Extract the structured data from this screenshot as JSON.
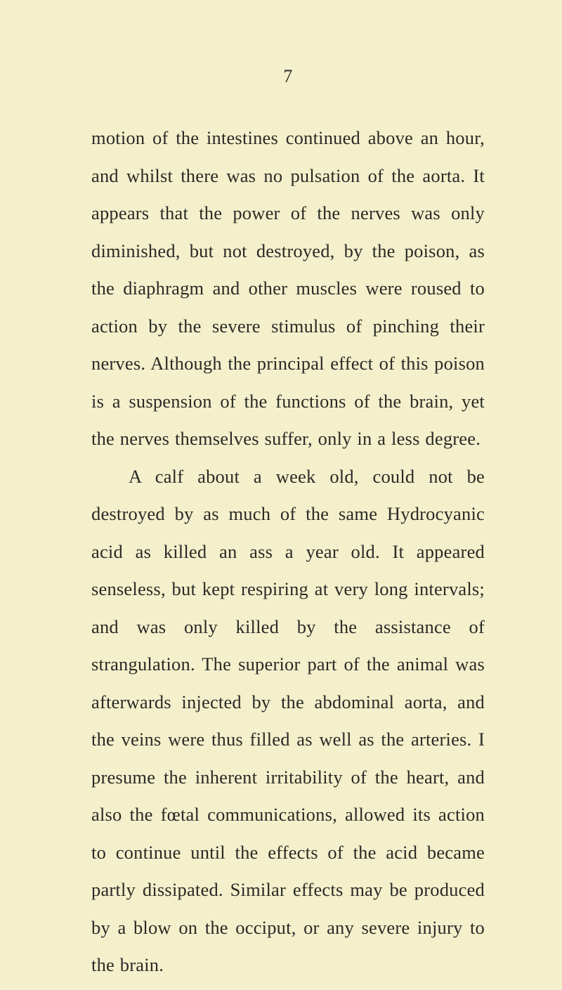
{
  "page": {
    "number": "7",
    "background_color": "#f4f0cc",
    "text_color": "#2a2a26",
    "font_family": "Times New Roman",
    "font_size_pt": 20,
    "line_height": 2.02,
    "paragraph1": "motion of the intestines continued above an hour, and whilst there was no pulsation of the aorta. It appears that the power of the nerves was only diminished, but not destroyed, by the poison, as the diaphragm and other muscles were roused to action by the severe stimulus of pinching their nerves. Although the principal effect of this poison is a sus­pension of the functions of the brain, yet the nerves themselves suffer, only in a less degree.",
    "paragraph2": "A calf about a week old, could not be destroyed by as much of the same Hydrocyanic acid as killed an ass a year old. It appeared senseless, but kept respiring at very long intervals; and was only killed by the assist­ance of strangulation. The superior part of the animal was afterwards injected by the abdominal aorta, and the veins were thus filled as well as the arteries. I presume the inherent irritability of the heart, and also the fœtal communications, allowed its action to continue until the effects of the acid became partly dissipated. Similar effects may be produced by a blow on the occiput, or any severe injury to the brain."
  }
}
